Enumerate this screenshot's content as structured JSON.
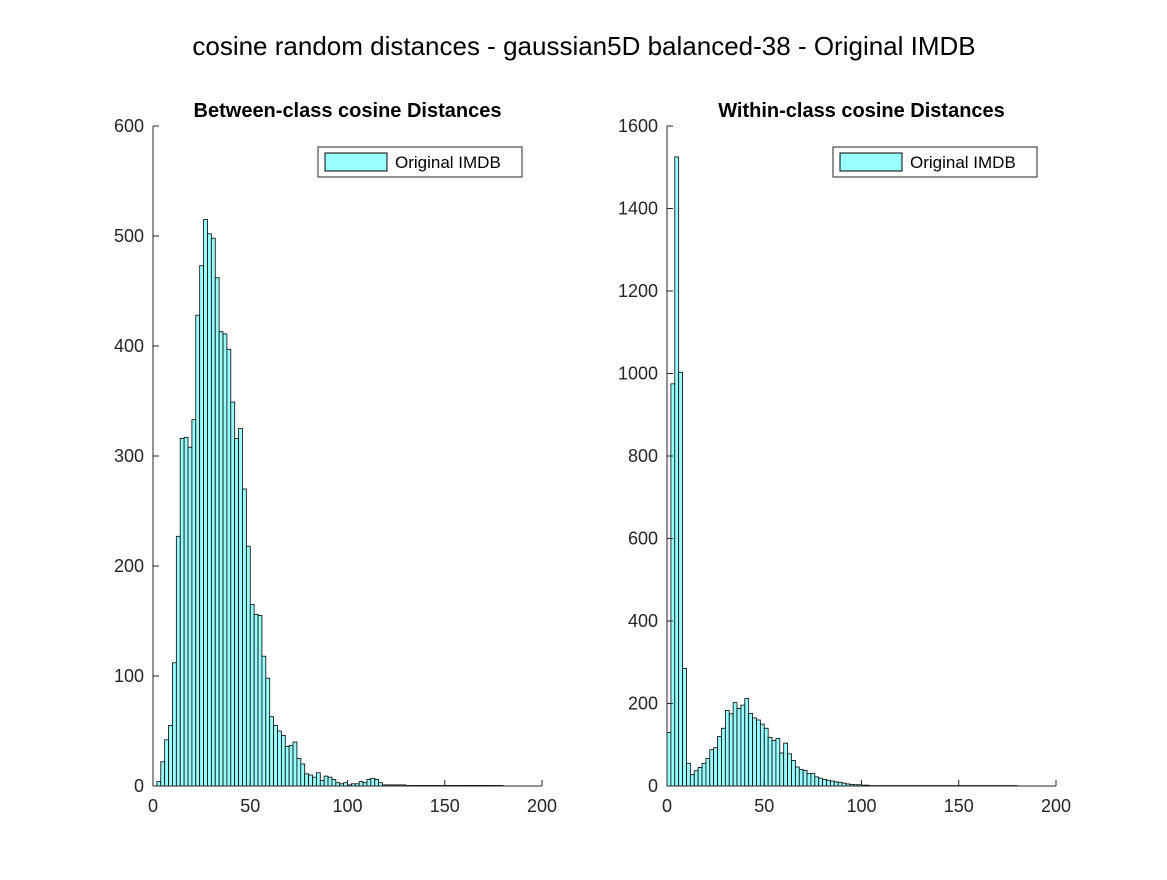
{
  "figure_title": "cosine random distances - gaussian5D balanced-38 - Original IMDB",
  "colors": {
    "bar_fill": "#99ffff",
    "bar_edge": "#000000",
    "axis": "#262626"
  },
  "chart_data": [
    {
      "type": "bar",
      "title": "Between-class cosine Distances",
      "xlabel": "",
      "ylabel": "",
      "xlim": [
        0,
        200
      ],
      "ylim": [
        0,
        600
      ],
      "xticks": [
        0,
        50,
        100,
        150,
        200
      ],
      "yticks": [
        0,
        100,
        200,
        300,
        400,
        500,
        600
      ],
      "grid": false,
      "legend_position": "top-right",
      "bin_width": 2,
      "series": [
        {
          "name": "Original IMDB",
          "bin_start": 0,
          "values": [
            0,
            4,
            22,
            42,
            55,
            112,
            227,
            316,
            317,
            308,
            333,
            428,
            473,
            515,
            502,
            498,
            462,
            413,
            411,
            397,
            349,
            316,
            325,
            270,
            218,
            165,
            156,
            155,
            118,
            98,
            63,
            55,
            50,
            46,
            36,
            37,
            40,
            25,
            20,
            11,
            10,
            8,
            12,
            5,
            9,
            8,
            6,
            3,
            2,
            3,
            1,
            2,
            2,
            4,
            3,
            6,
            7,
            6,
            3,
            1,
            1,
            1,
            1,
            1,
            1,
            0.5,
            0.5,
            0.5,
            0.5,
            0.5,
            0.5,
            0.5,
            0.5,
            0.5,
            0.5,
            0.5,
            0.5,
            0.5,
            0.5,
            0.5,
            0.5,
            0.5,
            0.5,
            0.5,
            0.5,
            0.5,
            0.5,
            0.5,
            0.5,
            0.5
          ]
        }
      ]
    },
    {
      "type": "bar",
      "title": "Within-class cosine Distances",
      "xlabel": "",
      "ylabel": "",
      "xlim": [
        0,
        200
      ],
      "ylim": [
        0,
        1600
      ],
      "xticks": [
        0,
        50,
        100,
        150,
        200
      ],
      "yticks": [
        0,
        200,
        400,
        600,
        800,
        1000,
        1200,
        1400,
        1600
      ],
      "grid": false,
      "legend_position": "top-right",
      "bin_width": 2,
      "series": [
        {
          "name": "Original IMDB",
          "bin_start": 0,
          "values": [
            130,
            975,
            1525,
            1003,
            285,
            55,
            28,
            37,
            45,
            55,
            67,
            88,
            93,
            120,
            140,
            183,
            175,
            202,
            188,
            196,
            212,
            176,
            165,
            160,
            150,
            140,
            118,
            110,
            115,
            80,
            104,
            78,
            62,
            46,
            40,
            38,
            30,
            30,
            22,
            19,
            16,
            14,
            12,
            10,
            9,
            7,
            5,
            4,
            3,
            3,
            2,
            2,
            1,
            1,
            1,
            1,
            1,
            1,
            1,
            1,
            1,
            1,
            1,
            1,
            1,
            1,
            1,
            1,
            1,
            1,
            1,
            1,
            1,
            1,
            1,
            1,
            1,
            1,
            1,
            1,
            1,
            1,
            1,
            1,
            1,
            1,
            1,
            1,
            1,
            1
          ]
        }
      ]
    }
  ]
}
